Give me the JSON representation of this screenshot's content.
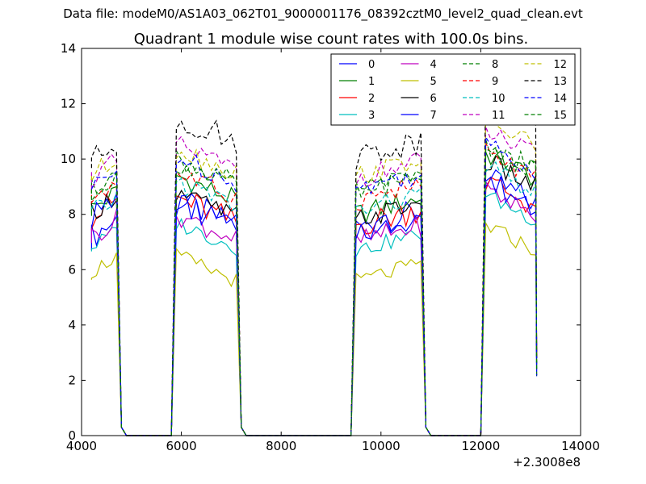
{
  "page": {
    "supertitle": "Data file: modeM0/AS1A03_062T01_9000001176_08392cztM0_level2_quad_clean.evt"
  },
  "colors": [
    "#0000ff",
    "#007f00",
    "#ff0000",
    "#00bfbf",
    "#bf00bf",
    "#bfbf00",
    "#000000"
  ],
  "chart_data": {
    "type": "line",
    "title": "Quadrant 1 module wise count rates with 100.0s bins.",
    "xlabel": "",
    "ylabel": "",
    "x_offset_label": "+2.3008e8",
    "xlim": [
      4000,
      14000
    ],
    "ylim": [
      0,
      14
    ],
    "xticks": [
      4000,
      6000,
      8000,
      10000,
      12000,
      14000
    ],
    "yticks": [
      0,
      2,
      4,
      6,
      8,
      10,
      12,
      14
    ],
    "legend_position": "top-right",
    "x_step": 100,
    "segments": [
      [
        4200,
        4700
      ],
      [
        5900,
        7100
      ],
      [
        9500,
        10800
      ],
      [
        12100,
        13100
      ]
    ],
    "gap_level": 0,
    "series": [
      {
        "name": "0",
        "style": "solid",
        "levels": [
          7.2,
          7.6,
          7.5,
          8.4
        ],
        "amp": 0.5
      },
      {
        "name": "1",
        "style": "solid",
        "levels": [
          8.2,
          8.5,
          8.0,
          9.3
        ],
        "amp": 0.4
      },
      {
        "name": "2",
        "style": "solid",
        "levels": [
          7.9,
          7.7,
          7.6,
          8.3
        ],
        "amp": 0.5
      },
      {
        "name": "3",
        "style": "solid",
        "levels": [
          6.8,
          6.8,
          6.7,
          7.8
        ],
        "amp": 0.3
      },
      {
        "name": "4",
        "style": "solid",
        "levels": [
          7.2,
          7.1,
          7.0,
          8.0
        ],
        "amp": 0.4
      },
      {
        "name": "5",
        "style": "solid",
        "levels": [
          5.9,
          5.6,
          5.6,
          6.7
        ],
        "amp": 0.3
      },
      {
        "name": "6",
        "style": "solid",
        "levels": [
          8.1,
          7.9,
          7.8,
          9.0
        ],
        "amp": 0.4
      },
      {
        "name": "7",
        "style": "solid",
        "levels": [
          7.9,
          7.5,
          7.4,
          8.3
        ],
        "amp": 0.5
      },
      {
        "name": "8",
        "style": "dashed",
        "levels": [
          8.9,
          9.1,
          8.8,
          9.6
        ],
        "amp": 0.4
      },
      {
        "name": "9",
        "style": "dashed",
        "levels": [
          8.6,
          8.6,
          8.5,
          9.3
        ],
        "amp": 0.4
      },
      {
        "name": "10",
        "style": "dashed",
        "levels": [
          8.0,
          8.3,
          8.1,
          8.8
        ],
        "amp": 0.4
      },
      {
        "name": "11",
        "style": "dashed",
        "levels": [
          9.3,
          9.6,
          9.3,
          10.1
        ],
        "amp": 0.4
      },
      {
        "name": "12",
        "style": "dashed",
        "levels": [
          9.4,
          9.5,
          9.4,
          10.5
        ],
        "amp": 0.4
      },
      {
        "name": "13",
        "style": "dashed",
        "levels": [
          9.9,
          10.6,
          10.1,
          11.9
        ],
        "amp": 0.5
      },
      {
        "name": "14",
        "style": "dashed",
        "levels": [
          8.9,
          9.2,
          8.9,
          9.6
        ],
        "amp": 0.4
      },
      {
        "name": "15",
        "style": "dashed",
        "levels": [
          8.8,
          9.0,
          8.8,
          9.5
        ],
        "amp": 0.4
      }
    ]
  }
}
